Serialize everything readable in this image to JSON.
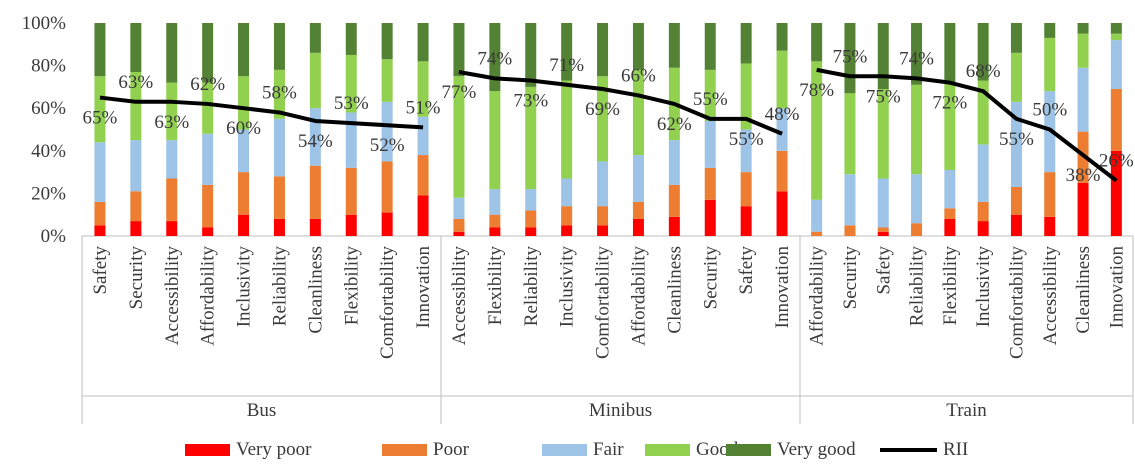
{
  "chart_data": {
    "type": "bar",
    "stacked": true,
    "ylim": [
      0,
      100
    ],
    "y_ticks": [
      "0%",
      "20%",
      "40%",
      "60%",
      "80%",
      "100%"
    ],
    "grid": false,
    "legend_position": "bottom",
    "series": [
      {
        "name": "Very poor",
        "color": "#ff0000"
      },
      {
        "name": "Poor",
        "color": "#ed7d31"
      },
      {
        "name": "Fair",
        "color": "#9dc3e6"
      },
      {
        "name": "Good",
        "color": "#92d050"
      },
      {
        "name": "Very good",
        "color": "#548235"
      }
    ],
    "line_series": {
      "name": "RII",
      "color": "#000000"
    },
    "groups": [
      {
        "name": "Bus",
        "categories": [
          "Safety",
          "Security",
          "Accessibility",
          "Affordability",
          "Inclusivity",
          "Reliability",
          "Cleanliness",
          "Flexibility",
          "Comfortability",
          "Innovation"
        ],
        "very_poor": [
          5,
          7,
          7,
          4,
          10,
          8,
          8,
          10,
          11,
          19
        ],
        "poor": [
          11,
          14,
          20,
          20,
          20,
          20,
          25,
          22,
          24,
          19
        ],
        "fair": [
          28,
          24,
          18,
          24,
          20,
          27,
          27,
          26,
          28,
          18
        ],
        "good": [
          31,
          32,
          27,
          24,
          25,
          23,
          26,
          27,
          20,
          26
        ],
        "very_good": [
          25,
          23,
          28,
          28,
          25,
          22,
          14,
          15,
          17,
          18
        ],
        "rii": [
          65,
          63,
          63,
          62,
          60,
          58,
          54,
          53,
          52,
          51
        ],
        "rii_labels": [
          "65%",
          "63%",
          "63%",
          "62%",
          "60%",
          "58%",
          "54%",
          "53%",
          "52%",
          "51%"
        ]
      },
      {
        "name": "Minibus",
        "categories": [
          "Accessibility",
          "Flexibility",
          "Reliability",
          "Inclusivity",
          "Comfortability",
          "Affordability",
          "Cleanliness",
          "Security",
          "Safety",
          "Innovation"
        ],
        "very_poor": [
          2,
          4,
          4,
          5,
          5,
          8,
          9,
          17,
          14,
          21
        ],
        "poor": [
          6,
          6,
          8,
          9,
          9,
          8,
          15,
          15,
          16,
          19
        ],
        "fair": [
          10,
          12,
          10,
          13,
          21,
          22,
          21,
          22,
          20,
          20
        ],
        "good": [
          57,
          46,
          48,
          46,
          40,
          40,
          34,
          24,
          31,
          27
        ],
        "very_good": [
          25,
          32,
          30,
          27,
          25,
          22,
          21,
          22,
          19,
          13
        ],
        "rii": [
          77,
          74,
          73,
          71,
          69,
          66,
          62,
          55,
          55,
          48
        ],
        "rii_labels": [
          "77%",
          "74%",
          "73%",
          "71%",
          "69%",
          "66%",
          "62%",
          "55%",
          "55%",
          "48%"
        ]
      },
      {
        "name": "Train",
        "categories": [
          "Affordability",
          "Security",
          "Safety",
          "Reliability",
          "Flexibility",
          "Inclusivity",
          "Comfortability",
          "Accessibility",
          "Cleanliness",
          "Innovation"
        ],
        "very_poor": [
          0,
          0,
          2,
          0,
          8,
          7,
          10,
          9,
          25,
          40
        ],
        "poor": [
          2,
          5,
          2,
          6,
          5,
          9,
          13,
          21,
          24,
          29
        ],
        "fair": [
          15,
          24,
          23,
          23,
          18,
          27,
          40,
          38,
          30,
          23
        ],
        "good": [
          65,
          38,
          42,
          42,
          41,
          30,
          23,
          25,
          16,
          3
        ],
        "very_good": [
          18,
          33,
          31,
          29,
          28,
          27,
          14,
          7,
          5,
          5
        ],
        "rii": [
          78,
          75,
          75,
          74,
          72,
          68,
          55,
          50,
          38,
          26
        ],
        "rii_labels": [
          "78%",
          "75%",
          "75%",
          "74%",
          "72%",
          "68%",
          "55%",
          "50%",
          "38%",
          "26%"
        ]
      }
    ]
  }
}
